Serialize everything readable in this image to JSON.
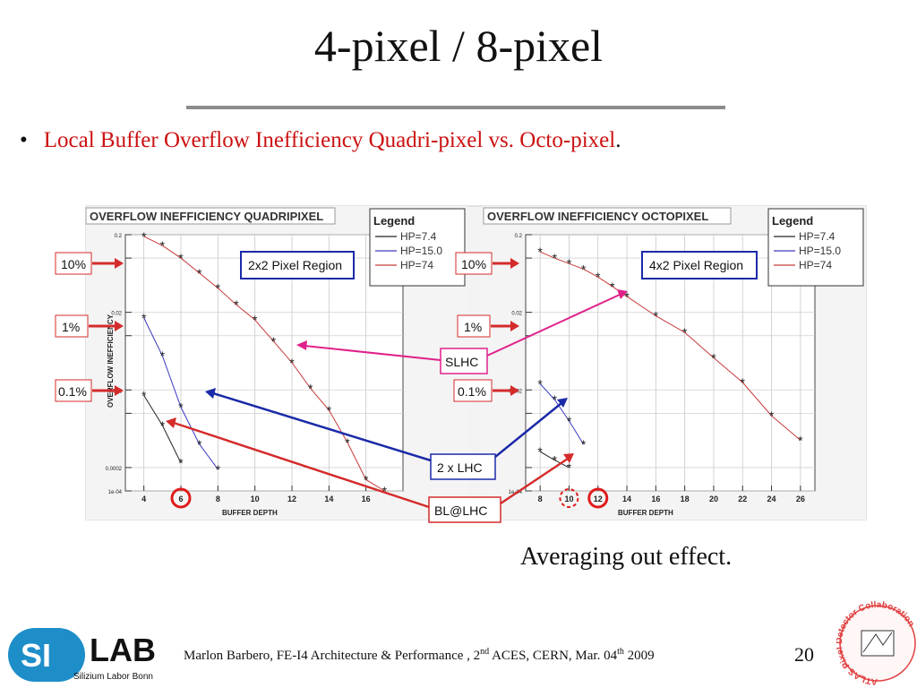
{
  "slide": {
    "title": "4-pixel / 8-pixel",
    "bullet_red": "Local Buffer Overflow Inefficiency Quadri-pixel vs. Octo-pixel",
    "bullet_tail": ".",
    "note": "Averaging out effect.",
    "footer": {
      "text_a": "Marlon Barbero, FE-I4 Architecture & Performance , 2",
      "sup_a": "nd",
      "text_b": " ACES, CERN, Mar. 04",
      "sup_b": "th",
      "text_c": " 2009"
    },
    "page_number": "20",
    "logo": {
      "mark": "SI",
      "name": "LAB",
      "subtitle": "Silizium Labor Bonn"
    },
    "seal": {
      "text": "ATLAS Pixel Detector Collaboration"
    }
  },
  "annotations": {
    "pct_labels": [
      "10%",
      "1%",
      "0.1%"
    ],
    "slhc": "SLHC",
    "lhc": "2 x LHC",
    "bl": "BL@LHC",
    "colors": {
      "red": "#d42b2b",
      "blue": "#1a2aa8",
      "magenta": "#e0218a"
    }
  },
  "chart_data": [
    {
      "type": "scatter",
      "title": "OVERFLOW INEFFICIENCY QUADRIPIXEL",
      "xlabel": "BUFFER DEPTH",
      "ylabel": "OVERFLOW INEFFICIENCY",
      "log_y": true,
      "xlim": [
        3,
        18
      ],
      "ylim": [
        0.0001,
        0.2
      ],
      "x_ticks": [
        4,
        6,
        8,
        10,
        12,
        14,
        16
      ],
      "x_tick_labels": [
        "4",
        "6",
        "8",
        "10",
        "12",
        "14",
        "16"
      ],
      "y_ticks": [
        0.2,
        0.1,
        0.02,
        0.01,
        0.002,
        0.001,
        0.0002,
        0.0001
      ],
      "y_tick_labels": [
        "0.2",
        "",
        "0.02",
        "",
        "0.002",
        "",
        "0.0002",
        "1e-04"
      ],
      "inset_label": "2x2 Pixel Region",
      "legend": {
        "title": "Legend",
        "position": "top-right",
        "entries": [
          "HP=7.4",
          "HP=15.0",
          "HP=74"
        ]
      },
      "highlight_x": [
        6
      ],
      "series": [
        {
          "name": "HP=7.4",
          "color": "#222222",
          "x": [
            4,
            5,
            6
          ],
          "y": [
            0.0017,
            0.0007,
            0.00023
          ]
        },
        {
          "name": "HP=15.0",
          "color": "#3a3ac0",
          "x": [
            4,
            5,
            6,
            7,
            8
          ],
          "y": [
            0.017,
            0.0055,
            0.0012,
            0.0004,
            0.00019
          ]
        },
        {
          "name": "HP=74",
          "color": "#c83a3a",
          "x": [
            4,
            5,
            6,
            7,
            8,
            9,
            10,
            11,
            12,
            13,
            14,
            15,
            16,
            17
          ],
          "y": [
            0.19,
            0.145,
            0.1,
            0.064,
            0.041,
            0.025,
            0.016,
            0.0085,
            0.0045,
            0.0021,
            0.0011,
            0.00042,
            0.00014,
            0.0001
          ]
        }
      ]
    },
    {
      "type": "scatter",
      "title": "OVERFLOW INEFFICIENCY OCTOPIXEL",
      "xlabel": "BUFFER DEPTH",
      "ylabel": "",
      "log_y": true,
      "xlim": [
        7,
        27
      ],
      "ylim": [
        0.0001,
        0.2
      ],
      "x_ticks": [
        8,
        10,
        12,
        14,
        16,
        18,
        20,
        22,
        24,
        26
      ],
      "x_tick_labels": [
        "8",
        "10",
        "12",
        "14",
        "16",
        "18",
        "20",
        "22",
        "24",
        "26"
      ],
      "y_ticks": [
        0.2,
        0.1,
        0.02,
        0.01,
        0.002,
        0.001,
        0.0002,
        0.0001
      ],
      "y_tick_labels": [
        "0.2",
        "",
        "0.02",
        "",
        "0.002",
        "",
        "",
        "1e-04"
      ],
      "inset_label": "4x2 Pixel Region",
      "legend": {
        "title": "Legend",
        "position": "top-right",
        "entries": [
          "HP=7.4",
          "HP=15.0",
          "HP=74"
        ]
      },
      "highlight_x": [
        10,
        12
      ],
      "series": [
        {
          "name": "HP=7.4",
          "color": "#222222",
          "x": [
            8,
            9,
            10
          ],
          "y": [
            0.00032,
            0.00025,
            0.0002
          ]
        },
        {
          "name": "HP=15.0",
          "color": "#3a3ac0",
          "x": [
            8,
            9,
            10,
            11
          ],
          "y": [
            0.0024,
            0.0015,
            0.0008,
            0.0004
          ]
        },
        {
          "name": "HP=74",
          "color": "#c83a3a",
          "x": [
            8,
            9,
            10,
            11,
            12,
            13,
            14,
            16,
            18,
            20,
            22,
            24,
            26
          ],
          "y": [
            0.12,
            0.1,
            0.085,
            0.072,
            0.057,
            0.043,
            0.032,
            0.018,
            0.011,
            0.0052,
            0.0025,
            0.00093,
            0.00045
          ]
        }
      ]
    }
  ]
}
